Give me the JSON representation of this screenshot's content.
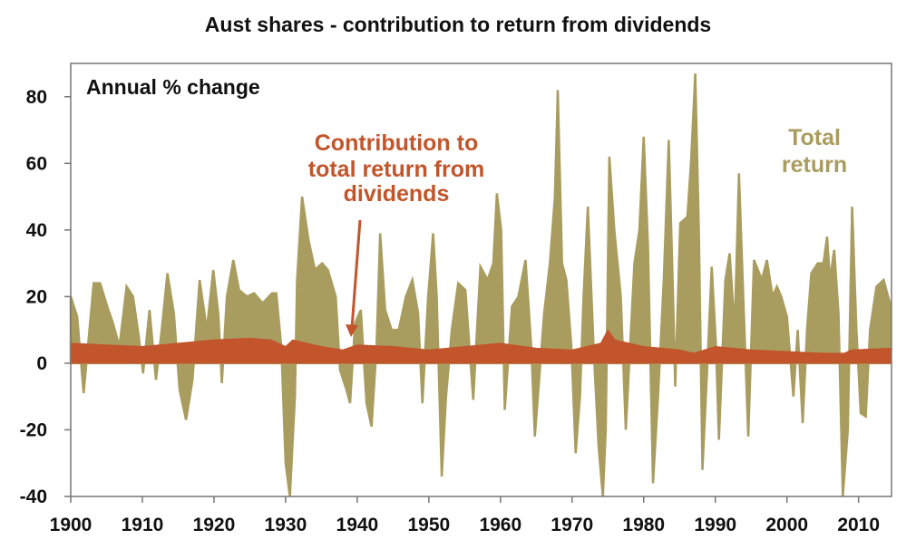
{
  "chart_data": {
    "type": "area",
    "title": "Aust shares - contribution to return from dividends",
    "ylabel": "Annual % change",
    "xlabel": "",
    "xlim": [
      1900,
      2014.6
    ],
    "ylim": [
      -40,
      90
    ],
    "xticks": [
      1900,
      1910,
      1920,
      1930,
      1940,
      1950,
      1960,
      1970,
      1980,
      1990,
      2000,
      2010
    ],
    "yticks": [
      -40,
      -20,
      0,
      20,
      40,
      60,
      80
    ],
    "grid": false,
    "colors": {
      "total": "#A99C5F",
      "dividends": "#C2552B",
      "axis": "#777777"
    },
    "annotations": {
      "dividends_label": [
        "Contribution to",
        "total return from",
        "dividends"
      ],
      "total_label": [
        "Total",
        "return"
      ]
    },
    "series": [
      {
        "name": "Total return",
        "x": [
          1900.0,
          1900.9,
          1901.8,
          1902.4,
          1903.2,
          1904.1,
          1905.1,
          1905.9,
          1906.8,
          1907.8,
          1908.7,
          1909.5,
          1910.1,
          1911.0,
          1911.9,
          1912.7,
          1913.5,
          1914.4,
          1915.2,
          1916.1,
          1917.0,
          1918.0,
          1919.0,
          1919.9,
          1920.6,
          1921.1,
          1921.8,
          1922.7,
          1923.5,
          1924.6,
          1925.6,
          1926.8,
          1928.1,
          1928.7,
          1929.4,
          1930.0,
          1930.6,
          1931.3,
          1931.6,
          1932.3,
          1933.2,
          1934.1,
          1935.1,
          1935.9,
          1937.0,
          1937.6,
          1938.5,
          1939.0,
          1939.7,
          1940.5,
          1941.3,
          1942.0,
          1942.7,
          1943.2,
          1943.9,
          1944.8,
          1945.8,
          1946.8,
          1947.7,
          1948.5,
          1949.1,
          1949.9,
          1950.6,
          1951.1,
          1951.8,
          1952.4,
          1953.2,
          1954.1,
          1955.1,
          1956.2,
          1957.2,
          1958.2,
          1959.0,
          1959.5,
          1960.1,
          1960.6,
          1961.6,
          1962.5,
          1963.5,
          1964.3,
          1964.8,
          1965.4,
          1966.1,
          1966.9,
          1967.6,
          1968.0,
          1968.6,
          1969.2,
          1969.9,
          1970.5,
          1971.1,
          1971.6,
          1972.2,
          1973.0,
          1973.7,
          1974.3,
          1974.7,
          1975.2,
          1975.9,
          1976.8,
          1977.5,
          1978.1,
          1978.7,
          1979.4,
          1980.0,
          1980.6,
          1981.3,
          1982.0,
          1982.8,
          1983.5,
          1984.1,
          1984.4,
          1985.1,
          1986.1,
          1986.6,
          1987.2,
          1987.7,
          1988.2,
          1988.9,
          1989.5,
          1990.1,
          1990.5,
          1991.4,
          1992.0,
          1992.7,
          1993.3,
          1993.9,
          1994.6,
          1995.4,
          1996.5,
          1997.2,
          1998.0,
          1998.6,
          1999.2,
          2000.0,
          2000.9,
          2001.5,
          2002.2,
          2002.8,
          2003.4,
          2004.3,
          2005.1,
          2005.6,
          2006.0,
          2006.6,
          2007.2,
          2007.8,
          2008.5,
          2009.1,
          2009.7,
          2010.3,
          2011.0,
          2011.6,
          2012.5,
          2013.5,
          2014.5
        ],
        "values": [
          20,
          14,
          -9,
          5,
          24,
          24,
          17,
          12,
          5,
          23,
          20,
          8,
          -3,
          16,
          -5,
          10,
          27,
          15,
          -8,
          -17,
          -5,
          25,
          10,
          28,
          15,
          -6,
          20,
          31,
          22,
          20,
          21,
          18,
          21,
          21,
          5,
          -30,
          -40,
          -10,
          25,
          50,
          37,
          28,
          30,
          28,
          20,
          -2,
          -8,
          -12,
          12,
          16,
          -12,
          -19,
          5,
          39,
          16,
          10,
          10,
          20,
          25,
          15,
          -12,
          20,
          39,
          20,
          -34,
          -10,
          10,
          24,
          22,
          -11,
          29,
          25,
          30,
          51,
          40,
          -14,
          17,
          20,
          31,
          5,
          -22,
          -5,
          15,
          30,
          50,
          82,
          30,
          25,
          5,
          -27,
          -10,
          20,
          47,
          5,
          -25,
          -40,
          -20,
          62,
          40,
          20,
          -20,
          5,
          30,
          40,
          68,
          35,
          -36,
          -10,
          25,
          67,
          20,
          -7,
          42,
          44,
          60,
          87,
          40,
          -32,
          0,
          29,
          5,
          -23,
          25,
          33,
          10,
          57,
          20,
          -22,
          31,
          25,
          31,
          20,
          23,
          20,
          14,
          -10,
          10,
          -18,
          10,
          27,
          30,
          30,
          38,
          25,
          34,
          15,
          -40,
          -20,
          47,
          10,
          -15,
          -16,
          10,
          23,
          25,
          17
        ]
      },
      {
        "name": "Contribution to total return from dividends",
        "x": [
          1900,
          1905,
          1910,
          1915,
          1920,
          1925,
          1928,
          1930,
          1931,
          1935,
          1938,
          1940,
          1945,
          1950,
          1955,
          1960,
          1965,
          1970,
          1974,
          1975,
          1976,
          1980,
          1985,
          1987,
          1990,
          1995,
          2000,
          2005,
          2008,
          2009,
          2014.5
        ],
        "values": [
          6,
          5.5,
          5,
          6,
          7,
          7.5,
          7,
          5,
          7,
          5,
          4,
          5.5,
          5,
          4,
          5,
          6,
          4.5,
          4,
          6,
          10,
          7,
          5,
          4,
          3,
          5,
          4,
          3.5,
          3,
          3,
          4,
          4.5
        ]
      }
    ]
  }
}
